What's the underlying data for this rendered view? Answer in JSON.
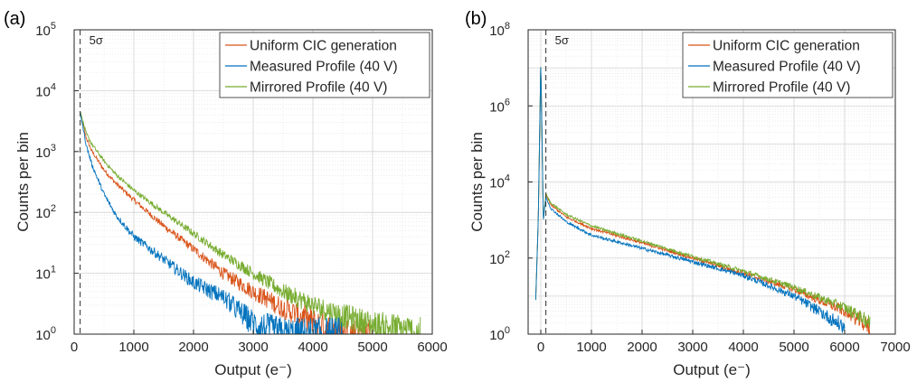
{
  "chart_data": [
    {
      "type": "line",
      "panel_label": "(a)",
      "xlabel": "Output (e⁻)",
      "ylabel": "Counts per bin",
      "y_scale": "log",
      "xlim": [
        0,
        6000
      ],
      "ylim": [
        1,
        100000
      ],
      "x_ticks": [
        "0",
        "1000",
        "2000",
        "3000",
        "4000",
        "5000",
        "6000"
      ],
      "y_ticks": [
        {
          "base": "10",
          "exp": "0"
        },
        {
          "base": "10",
          "exp": "1"
        },
        {
          "base": "10",
          "exp": "2"
        },
        {
          "base": "10",
          "exp": "3"
        },
        {
          "base": "10",
          "exp": "4"
        },
        {
          "base": "10",
          "exp": "5"
        }
      ],
      "grid": "major and minor",
      "legend_position": "top-right",
      "annotation": {
        "text": "5σ",
        "x": 100,
        "style": "dashed vertical line"
      },
      "series": [
        {
          "name": "Uniform CIC generation",
          "color": "#d95319",
          "x": [
            100,
            200,
            300,
            500,
            700,
            1000,
            1500,
            2000,
            2500,
            3000,
            3500,
            4000,
            4500,
            5000
          ],
          "y": [
            4500,
            1700,
            1000,
            500,
            300,
            160,
            60,
            25,
            10,
            5,
            2.7,
            1.6,
            1,
            1
          ]
        },
        {
          "name": "Measured Profile (40 V)",
          "color": "#0072bd",
          "x": [
            100,
            200,
            300,
            500,
            700,
            1000,
            1500,
            2000,
            2500,
            3000,
            3500,
            4000,
            4500
          ],
          "y": [
            4500,
            1300,
            600,
            200,
            90,
            40,
            17,
            7,
            4,
            1.5,
            1,
            1,
            1
          ]
        },
        {
          "name": "Mirrored Profile (40 V)",
          "color": "#77ac30",
          "x": [
            100,
            200,
            300,
            500,
            700,
            1000,
            1500,
            2000,
            2500,
            3000,
            3500,
            4000,
            4500,
            5000,
            5500,
            5800
          ],
          "y": [
            4500,
            2000,
            1300,
            700,
            420,
            230,
            100,
            45,
            20,
            10,
            5,
            3,
            2,
            1.4,
            1.2,
            1
          ]
        }
      ]
    },
    {
      "type": "line",
      "panel_label": "(b)",
      "xlabel": "Output (e⁻)",
      "ylabel": "Counts per bin",
      "y_scale": "log",
      "xlim": [
        -250,
        7000
      ],
      "ylim": [
        1,
        100000000
      ],
      "x_ticks": [
        "0",
        "1000",
        "2000",
        "3000",
        "4000",
        "5000",
        "6000",
        "7000"
      ],
      "y_ticks": [
        {
          "base": "10",
          "exp": "0"
        },
        {
          "base": "10",
          "exp": "2"
        },
        {
          "base": "10",
          "exp": "4"
        },
        {
          "base": "10",
          "exp": "6"
        },
        {
          "base": "10",
          "exp": "8"
        }
      ],
      "grid": "major and minor",
      "legend_position": "top-right",
      "annotation": {
        "text": "5σ",
        "x": 100,
        "style": "dashed vertical line"
      },
      "series": [
        {
          "name": "Uniform CIC generation",
          "color": "#d95319",
          "x": [
            -100,
            -50,
            0,
            50,
            100,
            200,
            500,
            1000,
            2000,
            3000,
            4000,
            5000,
            6000,
            6500
          ],
          "y": [
            8,
            1000,
            15000000,
            1000,
            4500,
            2500,
            1200,
            600,
            250,
            100,
            40,
            15,
            4,
            1.5
          ]
        },
        {
          "name": "Measured Profile (40 V)",
          "color": "#0072bd",
          "x": [
            -100,
            -50,
            0,
            50,
            100,
            200,
            500,
            1000,
            2000,
            3000,
            4000,
            5000,
            5500,
            6000
          ],
          "y": [
            8,
            1000,
            15000000,
            1000,
            4000,
            2000,
            900,
            400,
            180,
            80,
            35,
            10,
            4,
            1.5
          ]
        },
        {
          "name": "Mirrored Profile (40 V)",
          "color": "#77ac30",
          "x": [
            -100,
            -50,
            0,
            50,
            100,
            200,
            500,
            1000,
            2000,
            3000,
            4000,
            5000,
            6000,
            6500
          ],
          "y": [
            8,
            1000,
            15000000,
            1000,
            4800,
            2800,
            1400,
            700,
            280,
            110,
            45,
            17,
            5,
            2
          ]
        }
      ]
    }
  ]
}
